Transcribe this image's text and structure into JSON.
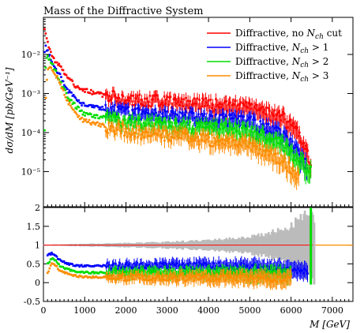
{
  "chart_data": {
    "type": "scatter",
    "title": "Mass of the Diffractive System",
    "ylabel_main": "dσ/dM [pb/GeV⁻¹]",
    "ylabel_ratio": "",
    "xlabel": "M [GeV]",
    "xlim": [
      0,
      7500
    ],
    "ylim_main_log10": [
      -5.9,
      -1.05
    ],
    "ylim_ratio": [
      -0.5,
      2.0
    ],
    "x_ticks": [
      0,
      1000,
      2000,
      3000,
      4000,
      5000,
      6000,
      7000
    ],
    "x_tick_labels": [
      "0",
      "1000",
      "2000",
      "3000",
      "4000",
      "5000",
      "6000",
      "7000"
    ],
    "y_main_ticks_log10": [
      -5,
      -4,
      -3,
      -2
    ],
    "y_main_tick_labels": [
      "10⁻⁵",
      "10⁻⁴",
      "10⁻³",
      "10⁻²"
    ],
    "y_ratio_ticks": [
      -0.5,
      0,
      0.5,
      1,
      1.5,
      2
    ],
    "y_ratio_tick_labels": [
      "-0.5",
      "0",
      "0.5",
      "1",
      "1.5",
      "2"
    ],
    "legend_position": "top-right",
    "series": [
      {
        "name": "Diffractive, no N_ch cut",
        "legend_label": "Diffractive, no ",
        "legend_sub": "N",
        "legend_subscript": "ch",
        "legend_suffix": " cut",
        "color": "#ff0000",
        "points": [
          [
            30,
            0.04
          ],
          [
            60,
            0.03
          ],
          [
            100,
            0.02
          ],
          [
            150,
            0.013
          ],
          [
            200,
            0.009
          ],
          [
            300,
            0.006
          ],
          [
            400,
            0.005
          ],
          [
            500,
            0.0035
          ],
          [
            600,
            0.0025
          ],
          [
            700,
            0.0019
          ],
          [
            800,
            0.0015
          ],
          [
            1000,
            0.0012
          ],
          [
            1500,
            0.0009
          ],
          [
            2000,
            0.0008
          ],
          [
            2500,
            0.0007
          ],
          [
            3000,
            0.00065
          ],
          [
            3500,
            0.0006
          ],
          [
            4000,
            0.00055
          ],
          [
            4500,
            0.0005
          ],
          [
            5000,
            0.00045
          ],
          [
            5500,
            0.0003
          ],
          [
            5800,
            0.00025
          ],
          [
            6000,
            0.00015
          ],
          [
            6200,
            9e-05
          ],
          [
            6400,
            3e-05
          ],
          [
            6500,
            1.2e-05
          ]
        ]
      },
      {
        "name": "Diffractive, N_ch > 1",
        "legend_label": "Diffractive, ",
        "legend_sub": "N",
        "legend_subscript": "ch",
        "legend_suffix": " > 1",
        "color": "#0000ff",
        "points": [
          [
            30,
            0.012
          ],
          [
            60,
            0.016
          ],
          [
            100,
            0.012
          ],
          [
            150,
            0.009
          ],
          [
            200,
            0.007
          ],
          [
            300,
            0.004
          ],
          [
            400,
            0.003
          ],
          [
            500,
            0.0018
          ],
          [
            600,
            0.0012
          ],
          [
            700,
            0.0009
          ],
          [
            800,
            0.0007
          ],
          [
            1000,
            0.0005
          ],
          [
            1500,
            0.0004
          ],
          [
            2000,
            0.00035
          ],
          [
            2500,
            0.0003
          ],
          [
            3000,
            0.00028
          ],
          [
            3500,
            0.00026
          ],
          [
            4000,
            0.00025
          ],
          [
            4500,
            0.00022
          ],
          [
            5000,
            0.0002
          ],
          [
            5500,
            0.00012
          ],
          [
            5800,
            9e-05
          ],
          [
            6000,
            5e-05
          ],
          [
            6200,
            3e-05
          ],
          [
            6400,
            1.5e-05
          ]
        ]
      },
      {
        "name": "Diffractive, N_ch > 2",
        "legend_label": "Diffractive, ",
        "legend_sub": "N",
        "legend_subscript": "ch",
        "legend_suffix": " > 2",
        "color": "#00dd00",
        "points": [
          [
            30,
            0.00013
          ],
          [
            60,
            0.009
          ],
          [
            100,
            0.0085
          ],
          [
            150,
            0.007
          ],
          [
            200,
            0.006
          ],
          [
            300,
            0.0035
          ],
          [
            400,
            0.0022
          ],
          [
            500,
            0.0013
          ],
          [
            600,
            0.0008
          ],
          [
            700,
            0.0006
          ],
          [
            800,
            0.00045
          ],
          [
            1000,
            0.0003
          ],
          [
            1500,
            0.00024
          ],
          [
            2000,
            0.0002
          ],
          [
            2500,
            0.00018
          ],
          [
            3000,
            0.00016
          ],
          [
            3500,
            0.00015
          ],
          [
            4000,
            0.00014
          ],
          [
            4500,
            0.00013
          ],
          [
            5000,
            0.00011
          ],
          [
            5500,
            7e-05
          ],
          [
            5800,
            5e-05
          ],
          [
            6000,
            3e-05
          ],
          [
            6200,
            2e-05
          ],
          [
            6500,
            1e-05
          ]
        ]
      },
      {
        "name": "Diffractive, N_ch > 3",
        "legend_label": "Diffractive, ",
        "legend_sub": "N",
        "legend_subscript": "ch",
        "legend_suffix": " > 3",
        "color": "#ff8c00",
        "points": [
          [
            60,
            0.0008
          ],
          [
            100,
            0.004
          ],
          [
            150,
            0.005
          ],
          [
            200,
            0.0045
          ],
          [
            300,
            0.003
          ],
          [
            400,
            0.0018
          ],
          [
            500,
            0.001
          ],
          [
            600,
            0.0006
          ],
          [
            700,
            0.0004
          ],
          [
            800,
            0.00028
          ],
          [
            1000,
            0.0002
          ],
          [
            1500,
            0.00015
          ],
          [
            2000,
            0.00012
          ],
          [
            2500,
            0.0001
          ],
          [
            3000,
            9e-05
          ],
          [
            3500,
            8e-05
          ],
          [
            4000,
            7e-05
          ],
          [
            4500,
            6e-05
          ],
          [
            5000,
            5e-05
          ],
          [
            5500,
            3e-05
          ],
          [
            5800,
            2e-05
          ],
          [
            6000,
            1.2e-05
          ],
          [
            6200,
            8e-06
          ]
        ]
      }
    ],
    "ratio_series": [
      {
        "name": "Diffractive, N_ch > 1",
        "color": "#0000ff",
        "points": [
          [
            100,
            0.72
          ],
          [
            200,
            0.78
          ],
          [
            300,
            0.7
          ],
          [
            400,
            0.6
          ],
          [
            600,
            0.5
          ],
          [
            800,
            0.45
          ],
          [
            1000,
            0.45
          ],
          [
            2000,
            0.45
          ],
          [
            3000,
            0.45
          ],
          [
            4000,
            0.45
          ],
          [
            5000,
            0.43
          ],
          [
            5500,
            0.4
          ],
          [
            6000,
            0.35
          ],
          [
            6400,
            0.3
          ]
        ]
      },
      {
        "name": "Diffractive, N_ch > 2",
        "color": "#00dd00",
        "points": [
          [
            100,
            0.5
          ],
          [
            200,
            0.65
          ],
          [
            300,
            0.58
          ],
          [
            400,
            0.45
          ],
          [
            600,
            0.35
          ],
          [
            800,
            0.3
          ],
          [
            1000,
            0.27
          ],
          [
            2000,
            0.26
          ],
          [
            3000,
            0.25
          ],
          [
            4000,
            0.25
          ],
          [
            5000,
            0.24
          ],
          [
            5500,
            0.22
          ],
          [
            6000,
            0.2
          ]
        ]
      },
      {
        "name": "Diffractive, N_ch > 3",
        "color": "#ff8c00",
        "points": [
          [
            100,
            0.25
          ],
          [
            200,
            0.5
          ],
          [
            300,
            0.45
          ],
          [
            400,
            0.32
          ],
          [
            600,
            0.22
          ],
          [
            800,
            0.18
          ],
          [
            1000,
            0.15
          ],
          [
            2000,
            0.14
          ],
          [
            3000,
            0.13
          ],
          [
            4000,
            0.12
          ],
          [
            5000,
            0.11
          ],
          [
            5500,
            0.1
          ],
          [
            6000,
            0.08
          ]
        ]
      }
    ],
    "ratio_reference": {
      "value": 1,
      "band_color": "#bbbbbb",
      "band_halfwidth": [
        [
          0,
          0.01
        ],
        [
          1000,
          0.03
        ],
        [
          2000,
          0.05
        ],
        [
          3000,
          0.08
        ],
        [
          4000,
          0.12
        ],
        [
          5000,
          0.2
        ],
        [
          5500,
          0.3
        ],
        [
          6000,
          0.5
        ],
        [
          6300,
          0.7
        ],
        [
          6500,
          0.9
        ]
      ]
    }
  }
}
